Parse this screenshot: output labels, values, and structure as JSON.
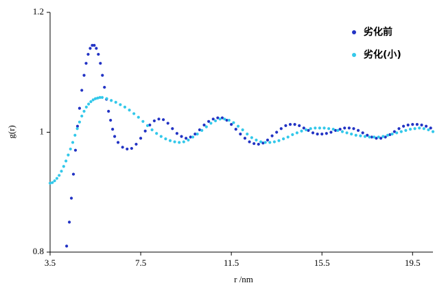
{
  "chart_data": {
    "type": "scatter",
    "xlabel": "r /nm",
    "ylabel": "g(r)",
    "xlim": [
      3.5,
      20.4
    ],
    "xticks": [
      3.5,
      7.5,
      11.5,
      15.5,
      19.5
    ],
    "ylim": [
      0.8,
      1.2
    ],
    "yticks": [
      0.8,
      1,
      1.2
    ],
    "legend": "upper right",
    "series": [
      {
        "name": "劣化前",
        "color": "#2233c4",
        "x": [
          4.23,
          4.35,
          4.44,
          4.53,
          4.62,
          4.71,
          4.8,
          4.9,
          5.0,
          5.09,
          5.18,
          5.27,
          5.36,
          5.45,
          5.54,
          5.63,
          5.72,
          5.81,
          5.9,
          5.99,
          6.08,
          6.17,
          6.26,
          6.35,
          6.5,
          6.7,
          6.9,
          7.1,
          7.3,
          7.5,
          7.7,
          7.9,
          8.1,
          8.3,
          8.5,
          8.7,
          8.9,
          9.1,
          9.3,
          9.5,
          9.7,
          9.9,
          10.1,
          10.3,
          10.5,
          10.7,
          10.9,
          11.1,
          11.3,
          11.5,
          11.7,
          11.9,
          12.1,
          12.3,
          12.5,
          12.7,
          12.9,
          13.1,
          13.3,
          13.5,
          13.7,
          13.9,
          14.1,
          14.3,
          14.5,
          14.7,
          14.9,
          15.1,
          15.3,
          15.5,
          15.7,
          15.9,
          16.1,
          16.3,
          16.5,
          16.7,
          16.9,
          17.1,
          17.3,
          17.5,
          17.7,
          17.9,
          18.1,
          18.3,
          18.5,
          18.7,
          18.9,
          19.1,
          19.3,
          19.5,
          19.7,
          19.9,
          20.1,
          20.3
        ],
        "values": [
          0.81,
          0.85,
          0.89,
          0.93,
          0.97,
          1.01,
          1.04,
          1.07,
          1.095,
          1.115,
          1.13,
          1.14,
          1.145,
          1.145,
          1.14,
          1.13,
          1.115,
          1.095,
          1.075,
          1.055,
          1.035,
          1.02,
          1.005,
          0.993,
          0.983,
          0.975,
          0.972,
          0.973,
          0.98,
          0.99,
          1.002,
          1.012,
          1.019,
          1.022,
          1.021,
          1.015,
          1.006,
          0.998,
          0.993,
          0.99,
          0.992,
          0.997,
          1.004,
          1.012,
          1.018,
          1.022,
          1.024,
          1.024,
          1.02,
          1.013,
          1.005,
          0.997,
          0.99,
          0.984,
          0.981,
          0.98,
          0.982,
          0.987,
          0.994,
          1.0,
          1.006,
          1.011,
          1.013,
          1.013,
          1.011,
          1.007,
          1.003,
          0.999,
          0.997,
          0.997,
          0.998,
          1.0,
          1.003,
          1.005,
          1.007,
          1.007,
          1.006,
          1.003,
          0.999,
          0.995,
          0.992,
          0.99,
          0.99,
          0.992,
          0.996,
          1.001,
          1.006,
          1.01,
          1.012,
          1.013,
          1.013,
          1.012,
          1.01,
          1.007
        ]
      },
      {
        "name": "劣化(小)",
        "color": "#33c8ea",
        "x": [
          3.5,
          3.6,
          3.7,
          3.8,
          3.9,
          4.0,
          4.1,
          4.2,
          4.3,
          4.4,
          4.5,
          4.6,
          4.7,
          4.8,
          4.9,
          5.0,
          5.1,
          5.2,
          5.3,
          5.4,
          5.5,
          5.6,
          5.7,
          5.8,
          6.0,
          6.2,
          6.4,
          6.6,
          6.8,
          7.0,
          7.2,
          7.4,
          7.6,
          7.8,
          8.0,
          8.2,
          8.4,
          8.6,
          8.8,
          9.0,
          9.2,
          9.4,
          9.6,
          9.8,
          10.0,
          10.2,
          10.4,
          10.6,
          10.8,
          11.0,
          11.2,
          11.4,
          11.6,
          11.8,
          12.0,
          12.2,
          12.4,
          12.6,
          12.8,
          13.0,
          13.2,
          13.4,
          13.6,
          13.8,
          14.0,
          14.2,
          14.4,
          14.6,
          14.8,
          15.0,
          15.2,
          15.4,
          15.6,
          15.8,
          16.0,
          16.2,
          16.4,
          16.6,
          16.8,
          17.0,
          17.2,
          17.4,
          17.6,
          17.8,
          18.0,
          18.2,
          18.4,
          18.6,
          18.8,
          19.0,
          19.2,
          19.4,
          19.6,
          19.8,
          20.0,
          20.2,
          20.4
        ],
        "values": [
          0.915,
          0.916,
          0.919,
          0.923,
          0.928,
          0.935,
          0.943,
          0.952,
          0.962,
          0.972,
          0.983,
          0.995,
          1.006,
          1.017,
          1.027,
          1.035,
          1.042,
          1.047,
          1.051,
          1.054,
          1.056,
          1.057,
          1.058,
          1.058,
          1.056,
          1.053,
          1.05,
          1.046,
          1.042,
          1.037,
          1.031,
          1.025,
          1.018,
          1.011,
          1.004,
          0.998,
          0.993,
          0.989,
          0.986,
          0.984,
          0.983,
          0.984,
          0.987,
          0.992,
          0.997,
          1.003,
          1.009,
          1.015,
          1.019,
          1.022,
          1.022,
          1.02,
          1.016,
          1.01,
          1.004,
          0.997,
          0.991,
          0.987,
          0.984,
          0.983,
          0.983,
          0.984,
          0.986,
          0.989,
          0.992,
          0.996,
          0.999,
          1.002,
          1.004,
          1.006,
          1.007,
          1.007,
          1.007,
          1.006,
          1.005,
          1.003,
          1.001,
          0.999,
          0.997,
          0.995,
          0.994,
          0.993,
          0.992,
          0.992,
          0.992,
          0.993,
          0.995,
          0.997,
          0.999,
          1.001,
          1.003,
          1.005,
          1.006,
          1.007,
          1.006,
          1.004,
          1.001
        ]
      }
    ]
  }
}
